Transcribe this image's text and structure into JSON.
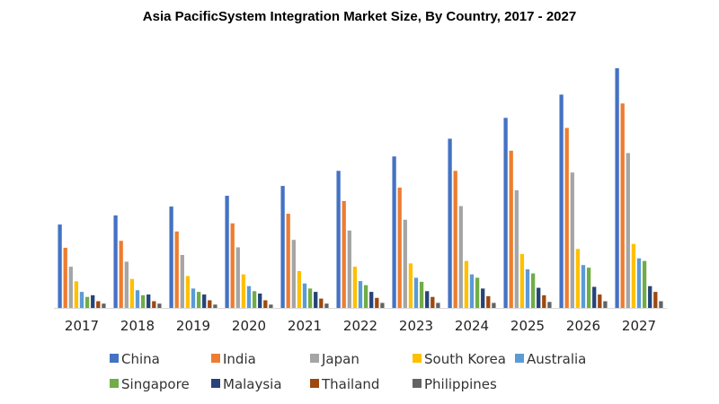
{
  "chart_data": {
    "type": "bar",
    "title": "Asia PacificSystem Integration Market Size, By Country,  2017  - 2027",
    "xlabel": "",
    "ylabel": "",
    "ylim": [
      0,
      100
    ],
    "grid": false,
    "legend_position": "bottom",
    "categories": [
      "2017",
      "2018",
      "2019",
      "2020",
      "2021",
      "2022",
      "2023",
      "2024",
      "2025",
      "2026",
      "2027"
    ],
    "series": [
      {
        "name": "China",
        "color": "#4472C4",
        "values": [
          34.8,
          38.6,
          42.3,
          46.8,
          50.9,
          57.2,
          63.2,
          70.6,
          79.3,
          89.0,
          100.0
        ]
      },
      {
        "name": "India",
        "color": "#ED7D31",
        "values": [
          25.1,
          28.0,
          31.9,
          35.3,
          39.3,
          44.6,
          50.2,
          57.2,
          65.6,
          75.1,
          85.3
        ]
      },
      {
        "name": "Japan",
        "color": "#A5A5A5",
        "values": [
          17.2,
          19.3,
          22.1,
          25.3,
          28.4,
          32.3,
          36.8,
          42.5,
          49.1,
          56.5,
          64.6
        ]
      },
      {
        "name": "South Korea",
        "color": "#FFC000",
        "values": [
          11.1,
          12.1,
          13.3,
          14.0,
          15.4,
          17.2,
          18.6,
          19.6,
          22.5,
          24.6,
          26.7
        ]
      },
      {
        "name": "Australia",
        "color": "#5B9BD5",
        "values": [
          6.7,
          7.4,
          8.1,
          9.1,
          10.2,
          11.2,
          12.6,
          14.0,
          16.1,
          17.9,
          20.7
        ]
      },
      {
        "name": "Singapore",
        "color": "#70AD47",
        "values": [
          4.6,
          5.3,
          6.7,
          7.0,
          8.1,
          9.5,
          10.9,
          12.6,
          14.4,
          16.8,
          19.6
        ]
      },
      {
        "name": "Malaysia",
        "color": "#264478",
        "values": [
          5.3,
          5.6,
          5.6,
          6.0,
          6.7,
          6.7,
          7.0,
          8.1,
          8.4,
          8.8,
          9.1
        ]
      },
      {
        "name": "Thailand",
        "color": "#9E480E",
        "values": [
          2.8,
          2.8,
          3.2,
          3.2,
          3.9,
          4.2,
          4.6,
          4.9,
          5.3,
          5.6,
          6.7
        ]
      },
      {
        "name": "Philippines",
        "color": "#636363",
        "values": [
          1.8,
          1.8,
          1.4,
          1.4,
          1.8,
          2.1,
          2.1,
          2.1,
          2.5,
          2.8,
          2.8
        ]
      }
    ]
  }
}
